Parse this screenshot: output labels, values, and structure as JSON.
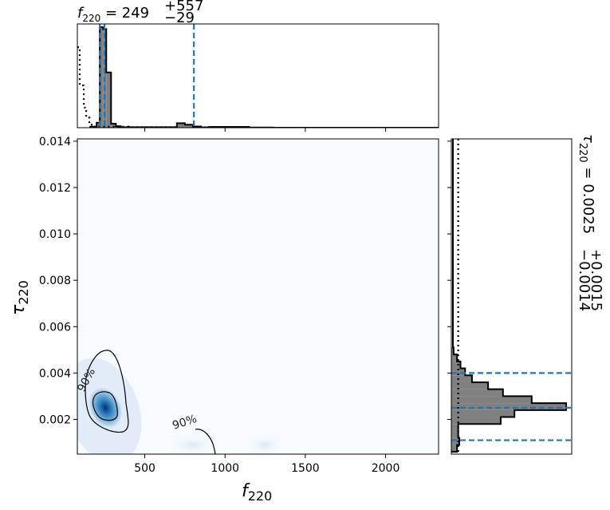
{
  "chart_data": {
    "type": "corner",
    "top_title": {
      "base": "f",
      "sub": "220",
      "value": " = 249",
      "sup": "+557",
      "low": "−29"
    },
    "right_title": {
      "base": "τ",
      "sub": "220",
      "value": " = 0.0025",
      "sup": "+0.0015",
      "low": "−0.0014"
    },
    "xlabel": {
      "base": "f",
      "sub": "220"
    },
    "ylabel": {
      "base": "τ",
      "sub": "220"
    },
    "xlim": [
      80,
      2330
    ],
    "ylim": [
      0.0005,
      0.0141
    ],
    "x_ticks": [
      500,
      1000,
      1500,
      2000
    ],
    "x_tick_labels": [
      "500",
      "1000",
      "1500",
      "2000"
    ],
    "y_ticks": [
      0.002,
      0.004,
      0.006,
      0.008,
      0.01,
      0.012,
      0.014
    ],
    "y_tick_labels": [
      "0.002",
      "0.004",
      "0.006",
      "0.008",
      "0.010",
      "0.012",
      "0.014"
    ],
    "f220_histogram": {
      "bin_edges": [
        160,
        200,
        220,
        240,
        260,
        290,
        320,
        350,
        700,
        750,
        800,
        850,
        900,
        1150,
        1300
      ],
      "counts": [
        0.01,
        0.05,
        1.0,
        0.98,
        0.55,
        0.04,
        0.015,
        0.005,
        0.045,
        0.03,
        0.012,
        0.004,
        0.008,
        0.002
      ],
      "prior": [
        [
          80,
          0.8
        ],
        [
          95,
          0.8
        ],
        [
          95,
          0.42
        ],
        [
          120,
          0.42
        ],
        [
          120,
          0.2
        ],
        [
          135,
          0.2
        ],
        [
          135,
          0.1
        ],
        [
          155,
          0.1
        ],
        [
          155,
          0.03
        ],
        [
          175,
          0.03
        ],
        [
          175,
          0.01
        ],
        [
          400,
          0.01
        ],
        [
          400,
          0.005
        ],
        [
          700,
          0.005
        ]
      ],
      "quantiles": [
        220,
        249,
        806
      ]
    },
    "tau220_histogram": {
      "bin_edges": [
        0.0006,
        0.0009,
        0.0012,
        0.0015,
        0.0018,
        0.0021,
        0.0024,
        0.0027,
        0.003,
        0.0033,
        0.0036,
        0.0039,
        0.0042,
        0.0045,
        0.0048,
        0.0051
      ],
      "counts": [
        0.05,
        0.07,
        0.06,
        0.06,
        0.43,
        0.55,
        1.0,
        0.7,
        0.45,
        0.32,
        0.18,
        0.12,
        0.08,
        0.05,
        0.02
      ],
      "prior_level": 0.06,
      "quantiles": [
        0.0011,
        0.0025,
        0.004
      ]
    },
    "density_peaks": [
      {
        "f": 255,
        "tau": 0.0025,
        "weight": 1.0
      },
      {
        "f": 800,
        "tau": 0.0009,
        "weight": 0.12
      },
      {
        "f": 1250,
        "tau": 0.0009,
        "weight": 0.05
      }
    ],
    "contour_labels": [
      "90%",
      "90%"
    ],
    "colors": {
      "quantile_line": "#1f77b4",
      "hist_fill": "#808080",
      "density": "#08306b"
    }
  }
}
